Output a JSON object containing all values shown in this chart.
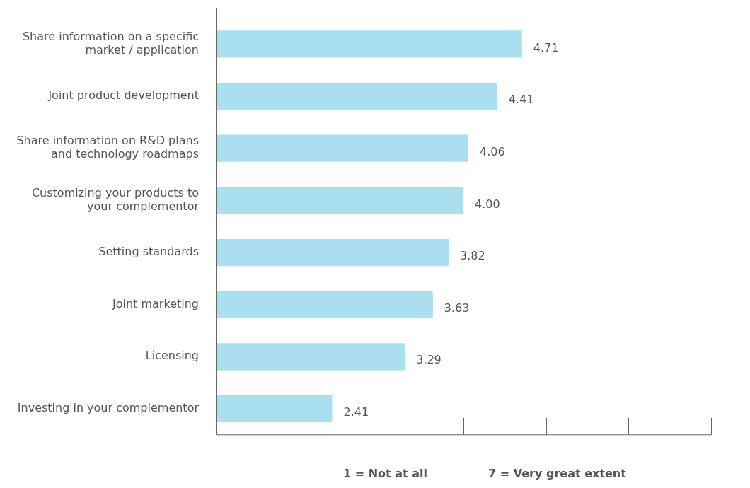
{
  "chart_data": {
    "type": "bar",
    "orientation": "horizontal",
    "categories": [
      "Share information on a specific market / application",
      "Joint product development",
      "Share information on R&D plans and technology roadmaps",
      "Customizing your products to your complementor",
      "Setting standards",
      "Joint marketing",
      "Licensing",
      "Investing in your complementor"
    ],
    "values": [
      4.71,
      4.41,
      4.06,
      4.0,
      3.82,
      3.63,
      3.29,
      2.41
    ],
    "value_labels": [
      "4.71",
      "4.41",
      "4.06",
      "4.00",
      "3.82",
      "3.63",
      "3.29",
      "2.41"
    ],
    "color": "#aadff0",
    "xlim": [
      1,
      7
    ],
    "tick_labels": "y",
    "grid": false,
    "legend": false,
    "annotations": [
      "1 = Not at all",
      "7 = Very great extent"
    ]
  }
}
